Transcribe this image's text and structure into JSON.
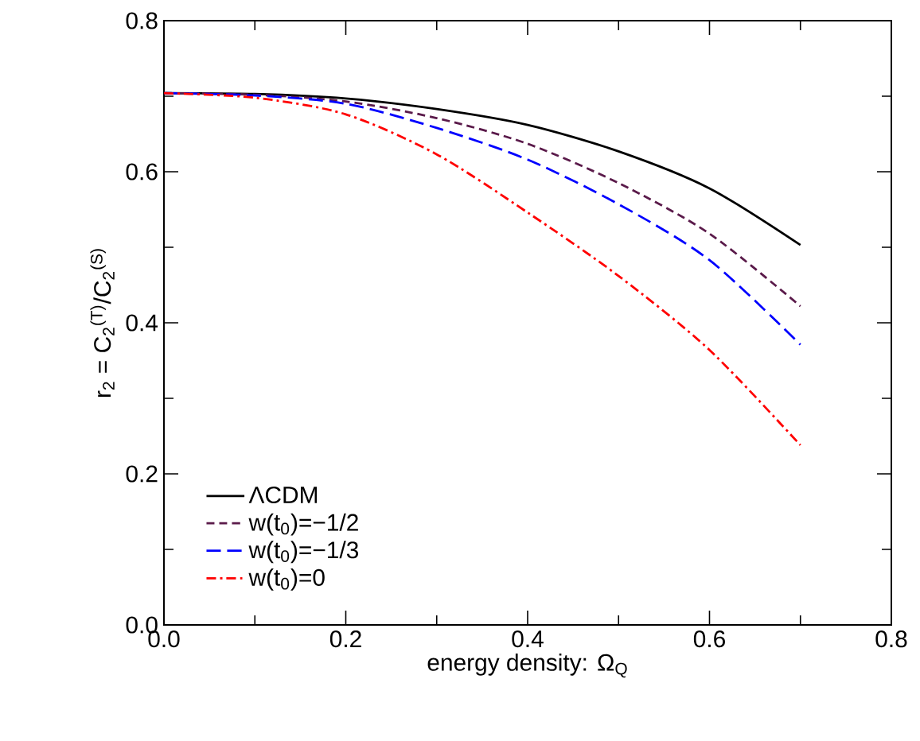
{
  "chart_data": {
    "type": "line",
    "xlabel": "energy density: Ω$_{Q}$",
    "ylabel": "r$_{2}$ = C$_{2}$$^{(T)}$/C$_{2}$$^{(S)}$",
    "x": [
      0,
      0.1,
      0.2,
      0.3,
      0.4,
      0.5,
      0.6,
      0.7
    ],
    "series": [
      {
        "name": "ΛCDM",
        "color": "#000000",
        "line_style": "solid",
        "values": [
          0.704,
          0.703,
          0.697,
          0.683,
          0.662,
          0.627,
          0.578,
          0.503
        ]
      },
      {
        "name": "w(t$_{0}$)=−1/2",
        "color": "#5a1a4a",
        "line_style": "dashed",
        "values": [
          0.704,
          0.702,
          0.693,
          0.671,
          0.637,
          0.585,
          0.518,
          0.422
        ]
      },
      {
        "name": "w(t$_{0}$)=−1/3",
        "color": "#0000ff",
        "line_style": "longdashed",
        "values": [
          0.704,
          0.701,
          0.69,
          0.658,
          0.616,
          0.557,
          0.483,
          0.371
        ]
      },
      {
        "name": "w(t$_{0}$)=0",
        "color": "#ff0000",
        "line_style": "dashdot",
        "values": [
          0.704,
          0.698,
          0.676,
          0.623,
          0.546,
          0.462,
          0.364,
          0.238
        ]
      }
    ],
    "xlim": [
      0,
      0.8
    ],
    "ylim": [
      0,
      0.8
    ],
    "xticks": [
      {
        "value": 0,
        "label": "0.0"
      },
      {
        "value": 0.2,
        "label": "0.2"
      },
      {
        "value": 0.4,
        "label": "0.4"
      },
      {
        "value": 0.6,
        "label": "0.6"
      },
      {
        "value": 0.8,
        "label": "0.8"
      }
    ],
    "yticks": [
      {
        "value": 0,
        "label": "0.0"
      },
      {
        "value": 0.2,
        "label": "0.2"
      },
      {
        "value": 0.4,
        "label": "0.4"
      },
      {
        "value": 0.6,
        "label": "0.6"
      },
      {
        "value": 0.8,
        "label": "0.8"
      }
    ],
    "legend": "bottom left",
    "grid": false,
    "marker": "none"
  }
}
